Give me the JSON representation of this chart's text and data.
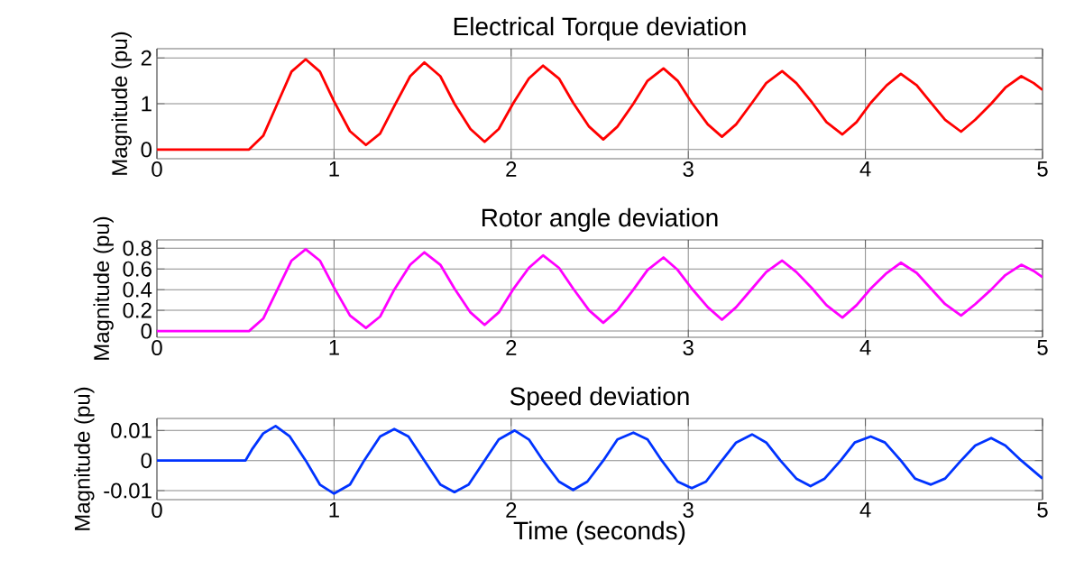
{
  "chart_data": [
    {
      "type": "line",
      "title": "Electrical Torque deviation",
      "ylabel": "Magnitude (pu)",
      "color": "#ff0000",
      "grid": true,
      "xlim": [
        0,
        5
      ],
      "ylim": [
        -0.2,
        2.2
      ],
      "xticks": [
        0,
        1,
        2,
        3,
        4,
        5
      ],
      "yticks": [
        0,
        1,
        2
      ],
      "x": [
        0,
        0.52,
        0.6,
        0.68,
        0.76,
        0.84,
        0.92,
        1.0,
        1.09,
        1.18,
        1.26,
        1.34,
        1.43,
        1.51,
        1.6,
        1.68,
        1.77,
        1.85,
        1.93,
        2.01,
        2.1,
        2.18,
        2.27,
        2.35,
        2.44,
        2.52,
        2.6,
        2.69,
        2.77,
        2.86,
        2.94,
        3.02,
        3.11,
        3.19,
        3.27,
        3.36,
        3.44,
        3.53,
        3.61,
        3.7,
        3.78,
        3.87,
        3.95,
        4.03,
        4.12,
        4.2,
        4.29,
        4.37,
        4.45,
        4.54,
        4.62,
        4.71,
        4.79,
        4.88,
        4.95,
        5
      ],
      "values": [
        0,
        0,
        0.3,
        1.0,
        1.7,
        1.97,
        1.7,
        1.05,
        0.4,
        0.1,
        0.35,
        0.95,
        1.6,
        1.9,
        1.6,
        1.0,
        0.45,
        0.17,
        0.45,
        1.0,
        1.55,
        1.83,
        1.55,
        1.02,
        0.5,
        0.22,
        0.5,
        1.0,
        1.5,
        1.77,
        1.5,
        1.02,
        0.55,
        0.28,
        0.55,
        1.02,
        1.45,
        1.71,
        1.45,
        1.02,
        0.6,
        0.33,
        0.6,
        1.02,
        1.4,
        1.65,
        1.4,
        1.02,
        0.65,
        0.39,
        0.65,
        1.0,
        1.35,
        1.6,
        1.45,
        1.3
      ]
    },
    {
      "type": "line",
      "title": "Rotor angle deviation",
      "ylabel": "Magnitude (pu)",
      "color": "#ff00ff",
      "grid": true,
      "xlim": [
        0,
        5
      ],
      "ylim": [
        -0.06,
        0.88
      ],
      "xticks": [
        0,
        1,
        2,
        3,
        4,
        5
      ],
      "yticks": [
        0,
        0.2,
        0.4,
        0.6,
        0.8
      ],
      "x": [
        0,
        0.52,
        0.6,
        0.68,
        0.76,
        0.84,
        0.92,
        1.0,
        1.09,
        1.18,
        1.26,
        1.34,
        1.43,
        1.51,
        1.6,
        1.68,
        1.77,
        1.85,
        1.93,
        2.01,
        2.1,
        2.18,
        2.27,
        2.35,
        2.44,
        2.52,
        2.6,
        2.69,
        2.77,
        2.86,
        2.94,
        3.02,
        3.11,
        3.19,
        3.27,
        3.36,
        3.44,
        3.53,
        3.61,
        3.7,
        3.78,
        3.87,
        3.95,
        4.03,
        4.12,
        4.2,
        4.29,
        4.37,
        4.45,
        4.54,
        4.62,
        4.71,
        4.79,
        4.88,
        4.95,
        5
      ],
      "values": [
        0,
        0,
        0.12,
        0.4,
        0.68,
        0.79,
        0.68,
        0.42,
        0.15,
        0.03,
        0.14,
        0.4,
        0.64,
        0.76,
        0.64,
        0.41,
        0.18,
        0.06,
        0.18,
        0.4,
        0.61,
        0.73,
        0.61,
        0.41,
        0.2,
        0.08,
        0.2,
        0.4,
        0.59,
        0.71,
        0.59,
        0.41,
        0.23,
        0.11,
        0.23,
        0.41,
        0.57,
        0.68,
        0.57,
        0.41,
        0.25,
        0.13,
        0.25,
        0.41,
        0.56,
        0.66,
        0.56,
        0.41,
        0.26,
        0.15,
        0.26,
        0.4,
        0.54,
        0.64,
        0.58,
        0.52
      ]
    },
    {
      "type": "line",
      "title": "Speed deviation",
      "ylabel": "Magnitude (pu)",
      "xlabel": "Time (seconds)",
      "color": "#0033ff",
      "grid": true,
      "xlim": [
        0,
        5
      ],
      "ylim": [
        -0.013,
        0.014
      ],
      "xticks": [
        0,
        1,
        2,
        3,
        4,
        5
      ],
      "yticks": [
        -0.01,
        0,
        0.01
      ],
      "x": [
        0,
        0.5,
        0.54,
        0.6,
        0.67,
        0.75,
        0.84,
        0.92,
        1.0,
        1.09,
        1.17,
        1.26,
        1.34,
        1.42,
        1.51,
        1.6,
        1.68,
        1.76,
        1.85,
        1.93,
        2.02,
        2.1,
        2.18,
        2.27,
        2.35,
        2.43,
        2.52,
        2.6,
        2.69,
        2.77,
        2.85,
        2.94,
        3.02,
        3.1,
        3.19,
        3.27,
        3.36,
        3.44,
        3.52,
        3.61,
        3.69,
        3.77,
        3.86,
        3.94,
        4.03,
        4.11,
        4.2,
        4.28,
        4.37,
        4.45,
        4.54,
        4.62,
        4.71,
        4.79,
        4.88,
        5
      ],
      "values": [
        0,
        0,
        0.004,
        0.009,
        0.0115,
        0.008,
        0,
        -0.008,
        -0.011,
        -0.008,
        0,
        0.008,
        0.0105,
        0.008,
        0,
        -0.008,
        -0.0105,
        -0.008,
        0,
        0.007,
        0.01,
        0.007,
        0,
        -0.007,
        -0.0098,
        -0.007,
        0,
        0.007,
        0.0093,
        0.007,
        0,
        -0.007,
        -0.0092,
        -0.007,
        0,
        0.006,
        0.0087,
        0.006,
        0,
        -0.006,
        -0.0085,
        -0.006,
        0,
        0.006,
        0.008,
        0.006,
        0,
        -0.006,
        -0.008,
        -0.006,
        0,
        0.005,
        0.0075,
        0.005,
        0,
        -0.006
      ]
    }
  ]
}
